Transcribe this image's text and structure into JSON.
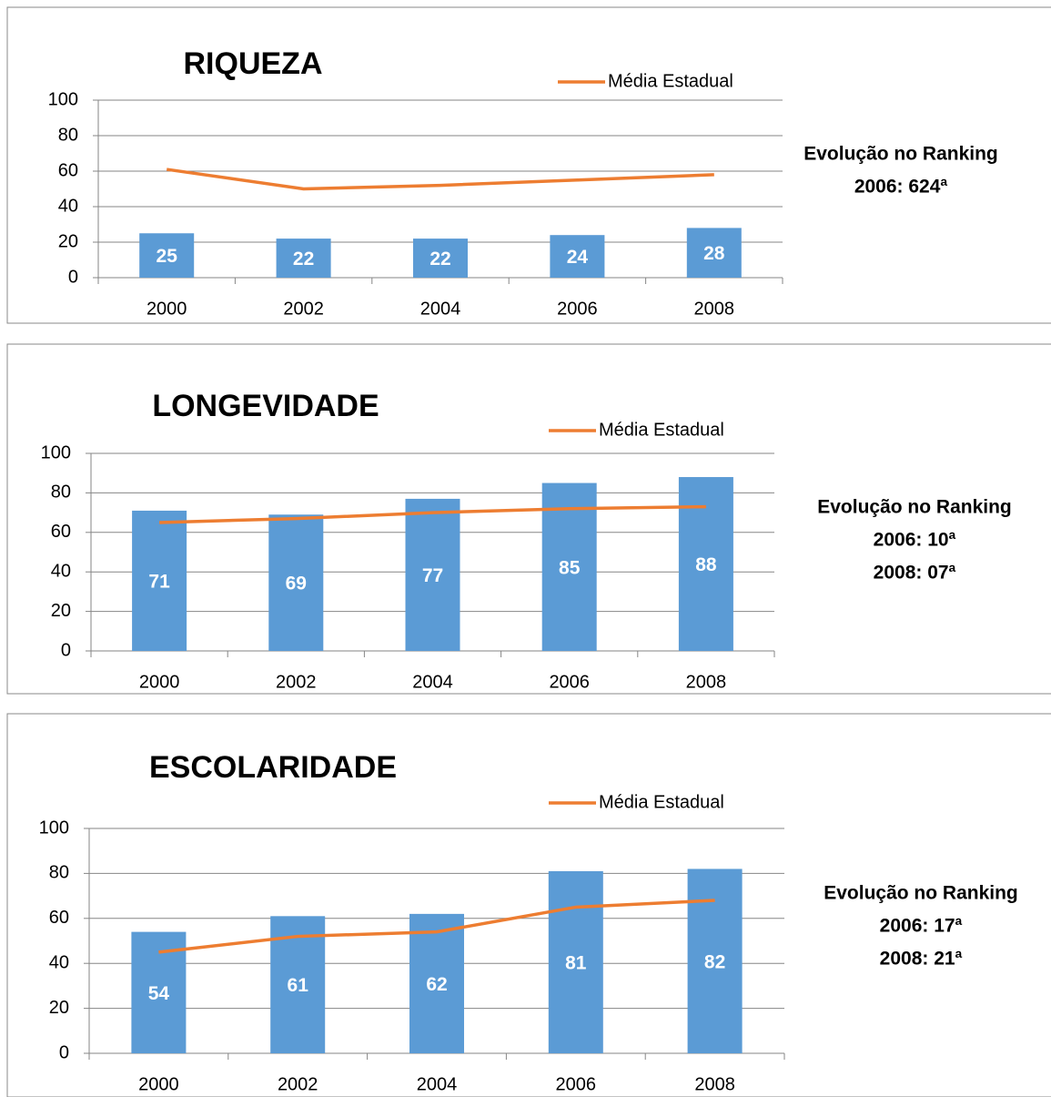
{
  "chart_data": [
    {
      "type": "bar-line",
      "title": "RIQUEZA",
      "categories": [
        "2000",
        "2002",
        "2004",
        "2006",
        "2008"
      ],
      "series": [
        {
          "type": "bar",
          "color": "#5b9bd5",
          "values": [
            25,
            22,
            22,
            24,
            28
          ]
        },
        {
          "type": "line",
          "name": "Média Estadual",
          "color": "#ed7d31",
          "values": [
            61,
            50,
            52,
            55,
            58
          ]
        }
      ],
      "ylim": [
        0,
        100
      ],
      "yticks": [
        0,
        20,
        40,
        60,
        80,
        100
      ],
      "grid": true,
      "legend": "top-right",
      "annotations": [
        "Evolução no Ranking",
        "2006: 624ª"
      ]
    },
    {
      "type": "bar-line",
      "title": "LONGEVIDADE",
      "categories": [
        "2000",
        "2002",
        "2004",
        "2006",
        "2008"
      ],
      "series": [
        {
          "type": "bar",
          "color": "#5b9bd5",
          "values": [
            71,
            69,
            77,
            85,
            88
          ]
        },
        {
          "type": "line",
          "name": "Média Estadual",
          "color": "#ed7d31",
          "values": [
            65,
            67,
            70,
            72,
            73
          ]
        }
      ],
      "ylim": [
        0,
        100
      ],
      "yticks": [
        0,
        20,
        40,
        60,
        80,
        100
      ],
      "grid": true,
      "legend": "top-right",
      "annotations": [
        "Evolução no Ranking",
        "2006: 10ª",
        "2008: 07ª"
      ]
    },
    {
      "type": "bar-line",
      "title": "ESCOLARIDADE",
      "categories": [
        "2000",
        "2002",
        "2004",
        "2006",
        "2008"
      ],
      "series": [
        {
          "type": "bar",
          "color": "#5b9bd5",
          "values": [
            54,
            61,
            62,
            81,
            82
          ]
        },
        {
          "type": "line",
          "name": "Média Estadual",
          "color": "#ed7d31",
          "values": [
            45,
            52,
            54,
            65,
            68
          ]
        }
      ],
      "ylim": [
        0,
        100
      ],
      "yticks": [
        0,
        20,
        40,
        60,
        80,
        100
      ],
      "grid": true,
      "legend": "top-right",
      "annotations": [
        "Evolução no Ranking",
        "2006: 17ª",
        "2008: 21ª"
      ]
    }
  ]
}
